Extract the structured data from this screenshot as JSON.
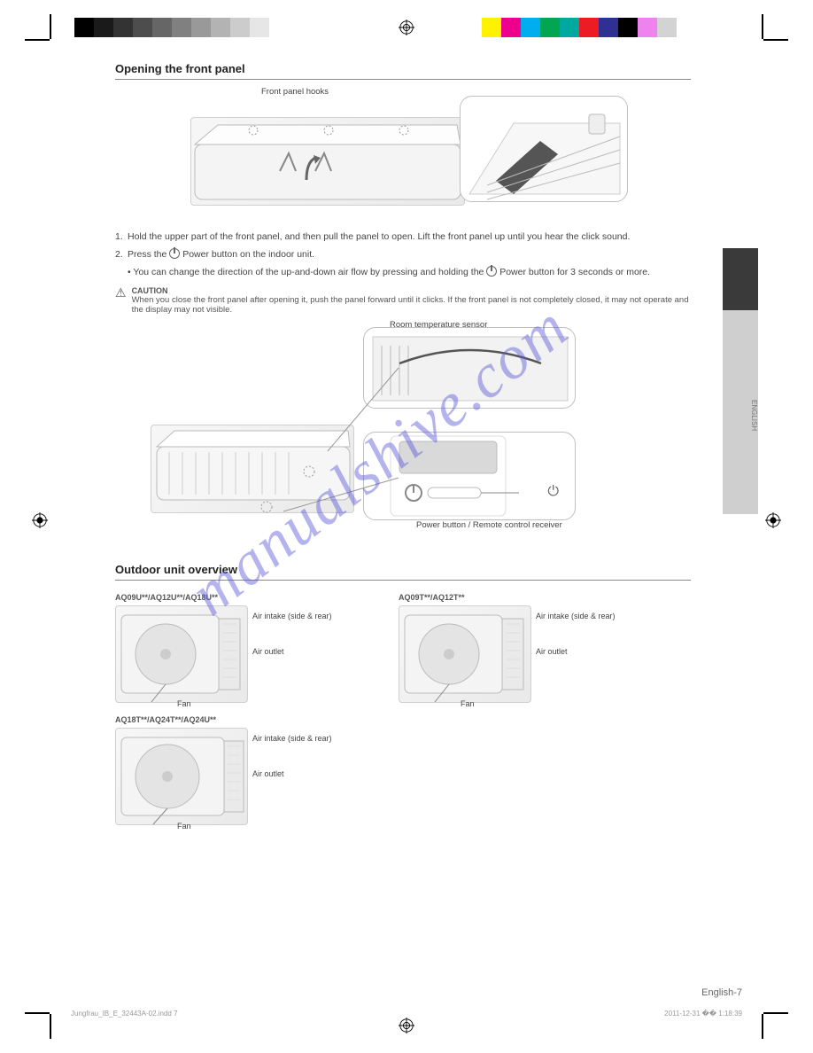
{
  "print": {
    "grayscale_bar": [
      "#000000",
      "#1a1a1a",
      "#333333",
      "#4d4d4d",
      "#666666",
      "#808080",
      "#999999",
      "#b3b3b3",
      "#cccccc",
      "#e6e6e6",
      "#ffffff"
    ],
    "color_bar": [
      "#fff200",
      "#ec008c",
      "#00aeef",
      "#00a651",
      "#00a99d",
      "#ed1c24",
      "#2e3192",
      "#000000",
      "#ee82ee",
      "#d3d3d3",
      "#ffffff"
    ]
  },
  "watermark": "manualshive.com",
  "side_tab": {
    "dark_color": "#3a3a3a",
    "light_color": "#cfcfcf",
    "label": "ENGLISH"
  },
  "section1": {
    "title": "Opening the front panel",
    "fig1_label_left": "Front panel hooks",
    "step1": "Hold the upper part of the front panel, and then pull the panel to open. Lift the front panel up until you hear the click sound.",
    "step2_a": "Press the ",
    "step2_b": " Power button on the indoor unit.",
    "step3_a": "You can change the direction of the up-and-down air flow by pressing and holding the ",
    "step3_b": " Power button for 3 seconds or more.",
    "caution_label": "CAUTION",
    "caution_text": "When you close the front panel after opening it, push the panel forward until it clicks. If the front panel is not completely closed, it may not operate and the display may not visible.",
    "mid_labels": {
      "room_temp_sensor": "Room temperature sensor",
      "power_button": "Power button / Remote control receiver",
      "power_icon_note": "Power"
    }
  },
  "section2": {
    "title": "Outdoor unit overview",
    "units": [
      {
        "model": "AQ09U**/AQ12U**/AQ18U**",
        "labels": {
          "air_intake": "Air intake (side & rear)",
          "air_outlet": "Air outlet",
          "fan": "Fan"
        }
      },
      {
        "model": "AQ09T**/AQ12T**",
        "labels": {
          "air_intake": "Air intake (side & rear)",
          "air_outlet": "Air outlet",
          "fan": "Fan"
        }
      },
      {
        "model": "AQ18T**/AQ24T**/AQ24U**",
        "labels": {
          "air_intake": "Air intake (side & rear)",
          "air_outlet": "Air outlet",
          "fan": "Fan"
        }
      }
    ]
  },
  "footer": {
    "page_text": "English-7",
    "file": "Jungfrau_IB_E_32443A-02.indd   7",
    "date": "2011-12-31   �� 1:18:39"
  },
  "colors": {
    "text": "#444444",
    "rule": "#888888",
    "illus_bg": "#efefef",
    "illus_border": "#d0d0d0",
    "callout_border": "#bfbfbf",
    "watermark": "rgba(88,86,214,0.45)"
  }
}
